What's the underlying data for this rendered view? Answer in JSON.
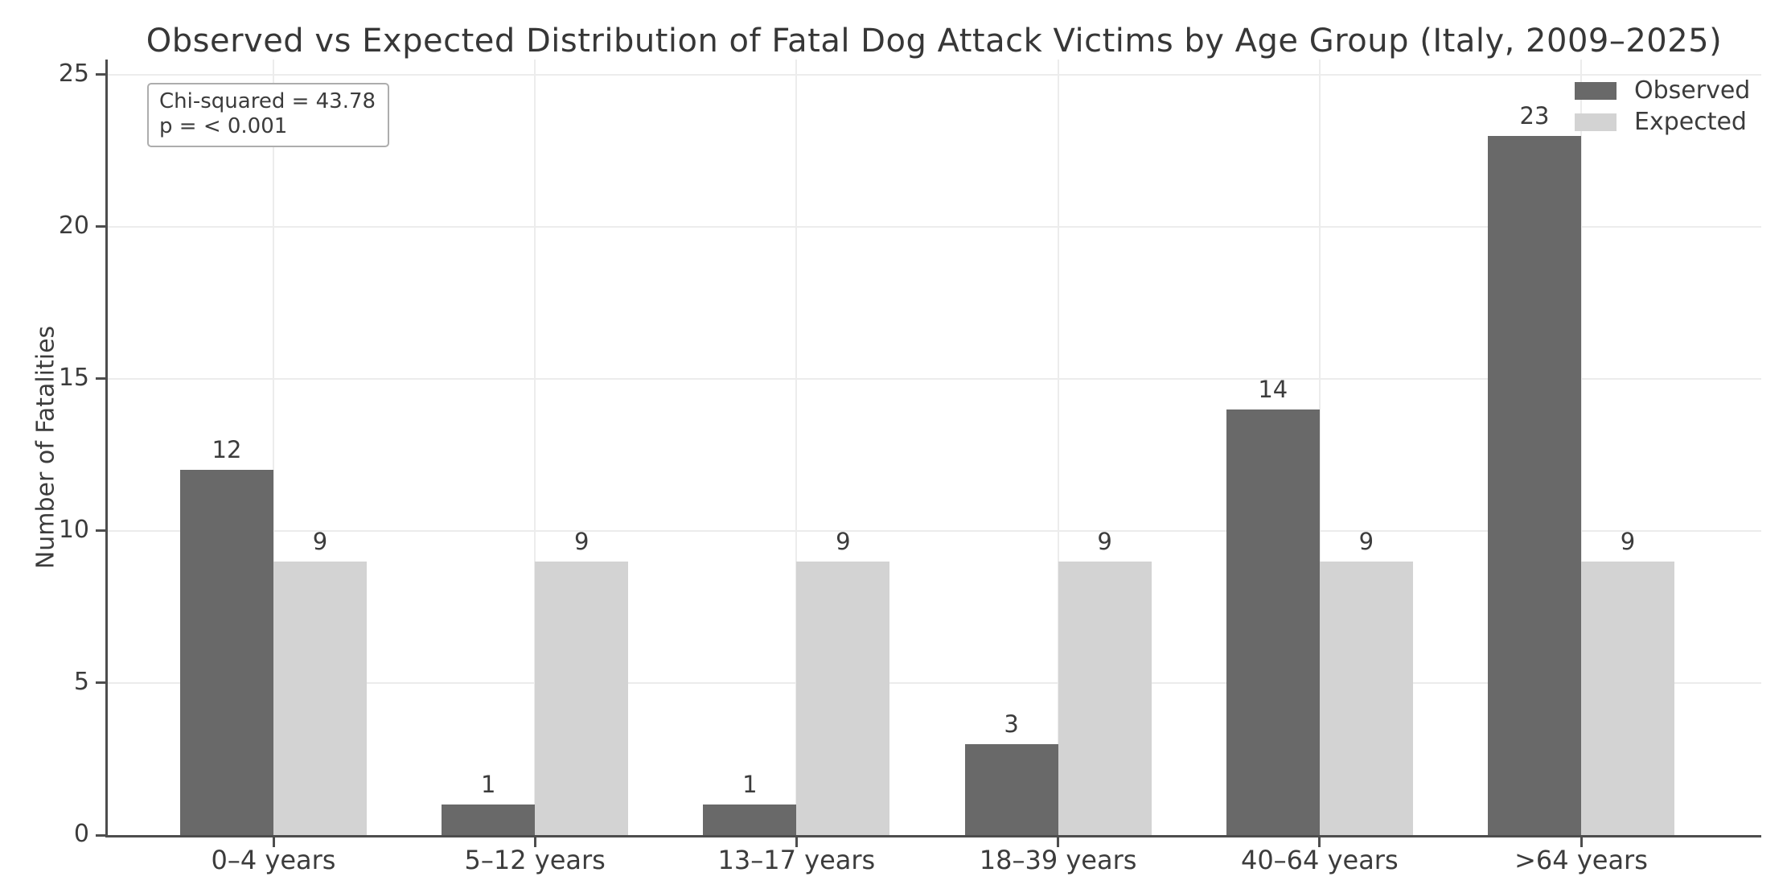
{
  "figure": {
    "title": "Observed vs Expected Distribution of Fatal Dog Attack Victims by Age Group (Italy, 2009–2025)"
  },
  "annotation": {
    "line1": "Chi-squared = 43.78",
    "line2": "p = < 0.001"
  },
  "legend": {
    "items": [
      {
        "label": "Observed",
        "color": "#696969"
      },
      {
        "label": "Expected",
        "color": "#d3d3d3"
      }
    ]
  },
  "chart_data": {
    "type": "bar",
    "title": "Observed vs Expected Distribution of Fatal Dog Attack Victims by Age Group (Italy, 2009–2025)",
    "categories": [
      "0–4 years",
      "5–12 years",
      "13–17 years",
      "18–39 years",
      "40–64 years",
      ">64 years"
    ],
    "series": [
      {
        "name": "Observed",
        "color": "#696969",
        "values": [
          12,
          1,
          1,
          3,
          14,
          23
        ]
      },
      {
        "name": "Expected",
        "color": "#d3d3d3",
        "values": [
          9,
          9,
          9,
          9,
          9,
          9
        ]
      }
    ],
    "xlabel": "",
    "ylabel": "Number of Fatalities",
    "yticks": [
      0,
      5,
      10,
      15,
      20,
      25
    ],
    "ylim": [
      0,
      25.5
    ],
    "grid": true,
    "grid_color": "#ececec",
    "spine_color": "#4d4d4d",
    "legend_position": "upper right",
    "bar_value_labels": true,
    "stats_annotation": {
      "chi_squared": "43.78",
      "p_value": "< 0.001"
    }
  }
}
